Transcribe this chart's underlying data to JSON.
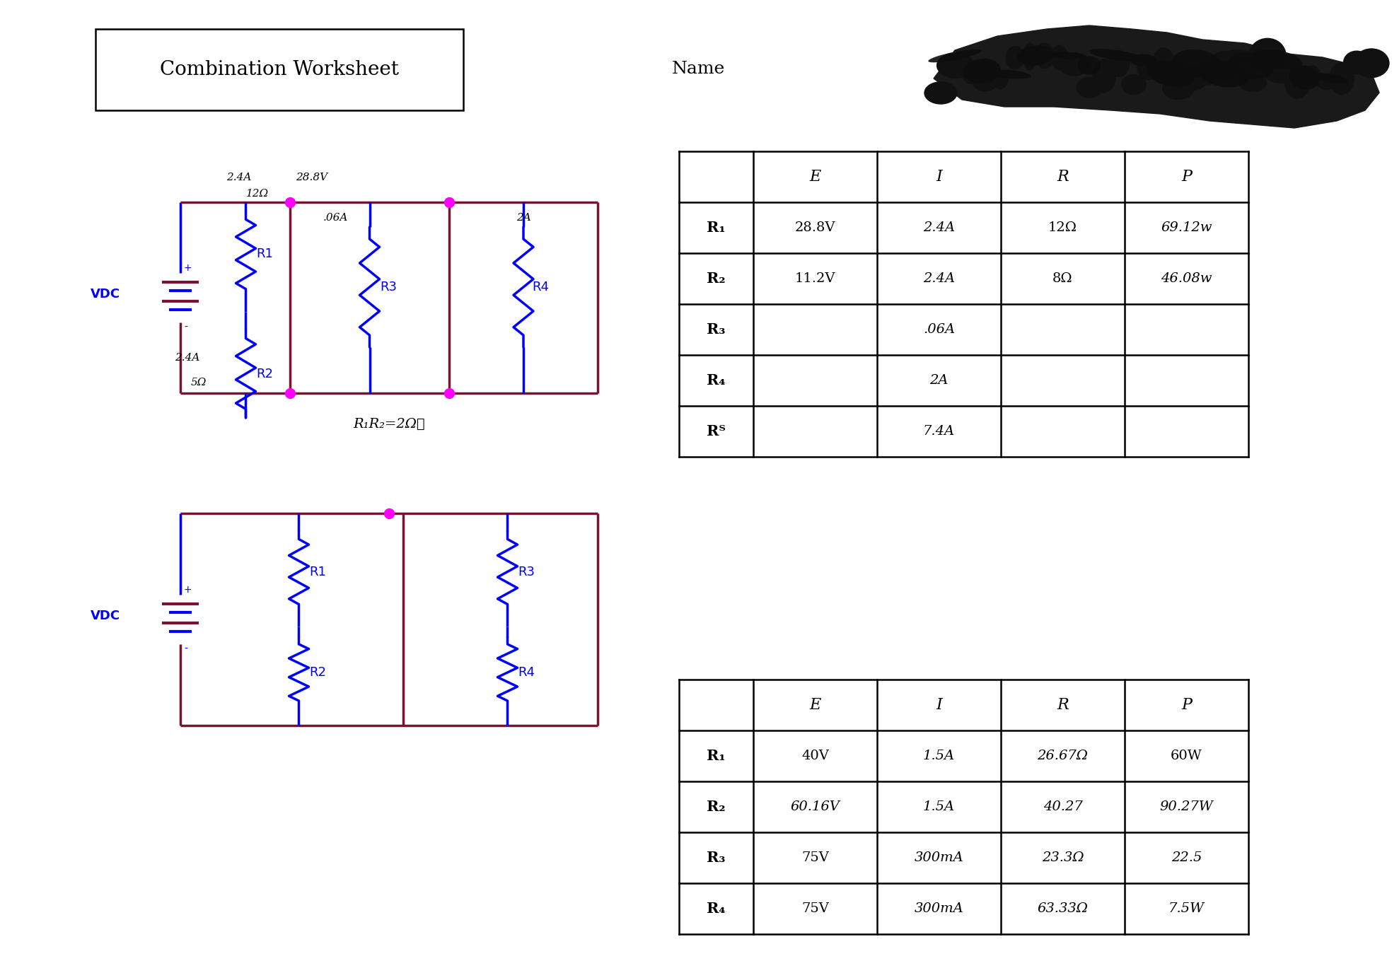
{
  "title": "Combination Worksheet",
  "name_label": "Name",
  "bg_color": "#ffffff",
  "table1": {
    "headers": [
      "",
      "E",
      "I",
      "R",
      "P"
    ],
    "rows": [
      [
        "R₁",
        "28.8V",
        "2.4A",
        "12Ω",
        "69.12w"
      ],
      [
        "R₂",
        "11.2V",
        "2.4A",
        "8Ω",
        "46.08w"
      ],
      [
        "R₃",
        "",
        ".06A",
        "",
        ""
      ],
      [
        "R₄",
        "",
        "2A",
        "",
        ""
      ],
      [
        "Rᵀ",
        "",
        "7.4A",
        "",
        ""
      ]
    ]
  },
  "table2": {
    "headers": [
      "",
      "E",
      "I",
      "R",
      "P"
    ],
    "rows": [
      [
        "R₁",
        "40V",
        "1.5A",
        "26.67Ω",
        "60W"
      ],
      [
        "R₂",
        "60.16V",
        "1.5A",
        "40.27",
        "90.27W"
      ],
      [
        "R₃",
        "75V",
        "300mA",
        "23.3Ω",
        "22.5"
      ],
      [
        "R₄",
        "75V",
        "300mA",
        "63.33Ω",
        "7.5W"
      ]
    ]
  },
  "circuit1_label_bottom": "R₁R₂=2Ωℓ",
  "vdc_label": "VDC",
  "blot_x": [
    13.2,
    13.5,
    14.1,
    14.8,
    15.4,
    16.0,
    16.5,
    17.0,
    17.6,
    18.2,
    18.7,
    19.1,
    19.4,
    19.5,
    19.3,
    18.9,
    18.3,
    17.7,
    17.1,
    16.4,
    15.7,
    14.9,
    14.2,
    13.6,
    13.2
  ],
  "blot_y": [
    12.65,
    13.05,
    13.25,
    13.35,
    13.4,
    13.35,
    13.3,
    13.2,
    13.15,
    13.0,
    12.95,
    12.85,
    12.7,
    12.45,
    12.2,
    12.05,
    11.95,
    12.0,
    12.05,
    12.15,
    12.2,
    12.25,
    12.25,
    12.35,
    12.65
  ]
}
